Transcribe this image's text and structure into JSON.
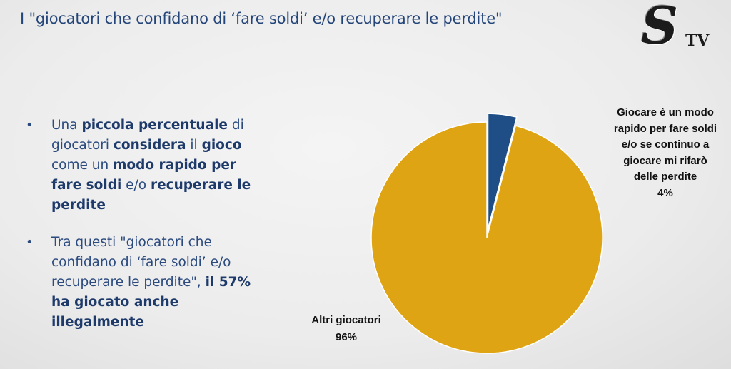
{
  "title": "I \"giocatori che confidano di ‘fare soldi’ e/o recuperare le perdite\"",
  "logo": {
    "letter": "S",
    "text": "TV"
  },
  "bullets": [
    {
      "parts": [
        {
          "text": "Una ",
          "bold": false
        },
        {
          "text": "piccola percentuale",
          "bold": true
        },
        {
          "text": " di giocatori ",
          "bold": false
        },
        {
          "text": "considera",
          "bold": true
        },
        {
          "text": " il ",
          "bold": false
        },
        {
          "text": "gioco",
          "bold": true
        },
        {
          "text": " come un ",
          "bold": false
        },
        {
          "text": "modo rapido per fare soldi",
          "bold": true
        },
        {
          "text": " e/o ",
          "bold": false
        },
        {
          "text": "recuperare le perdite",
          "bold": true
        }
      ]
    },
    {
      "parts": [
        {
          "text": "Tra questi \"giocatori che confidano di ‘fare soldi’ e/o recuperare le perdite\", ",
          "bold": false
        },
        {
          "text": "il 57% ha giocato anche illegalmente",
          "bold": true
        }
      ]
    }
  ],
  "chart_data": {
    "type": "pie",
    "title": "",
    "slices": [
      {
        "label": "Giocare è un modo rapido per fare soldi e/o se continuo a giocare mi rifarò delle perdite",
        "value": 4,
        "value_label": "4%",
        "color": "#1f4e86",
        "exploded": true
      },
      {
        "label": "Altri giocatori",
        "value": 96,
        "value_label": "96%",
        "color": "#dfa414",
        "exploded": false
      }
    ],
    "start_angle_deg": 0,
    "direction": "clockwise"
  }
}
